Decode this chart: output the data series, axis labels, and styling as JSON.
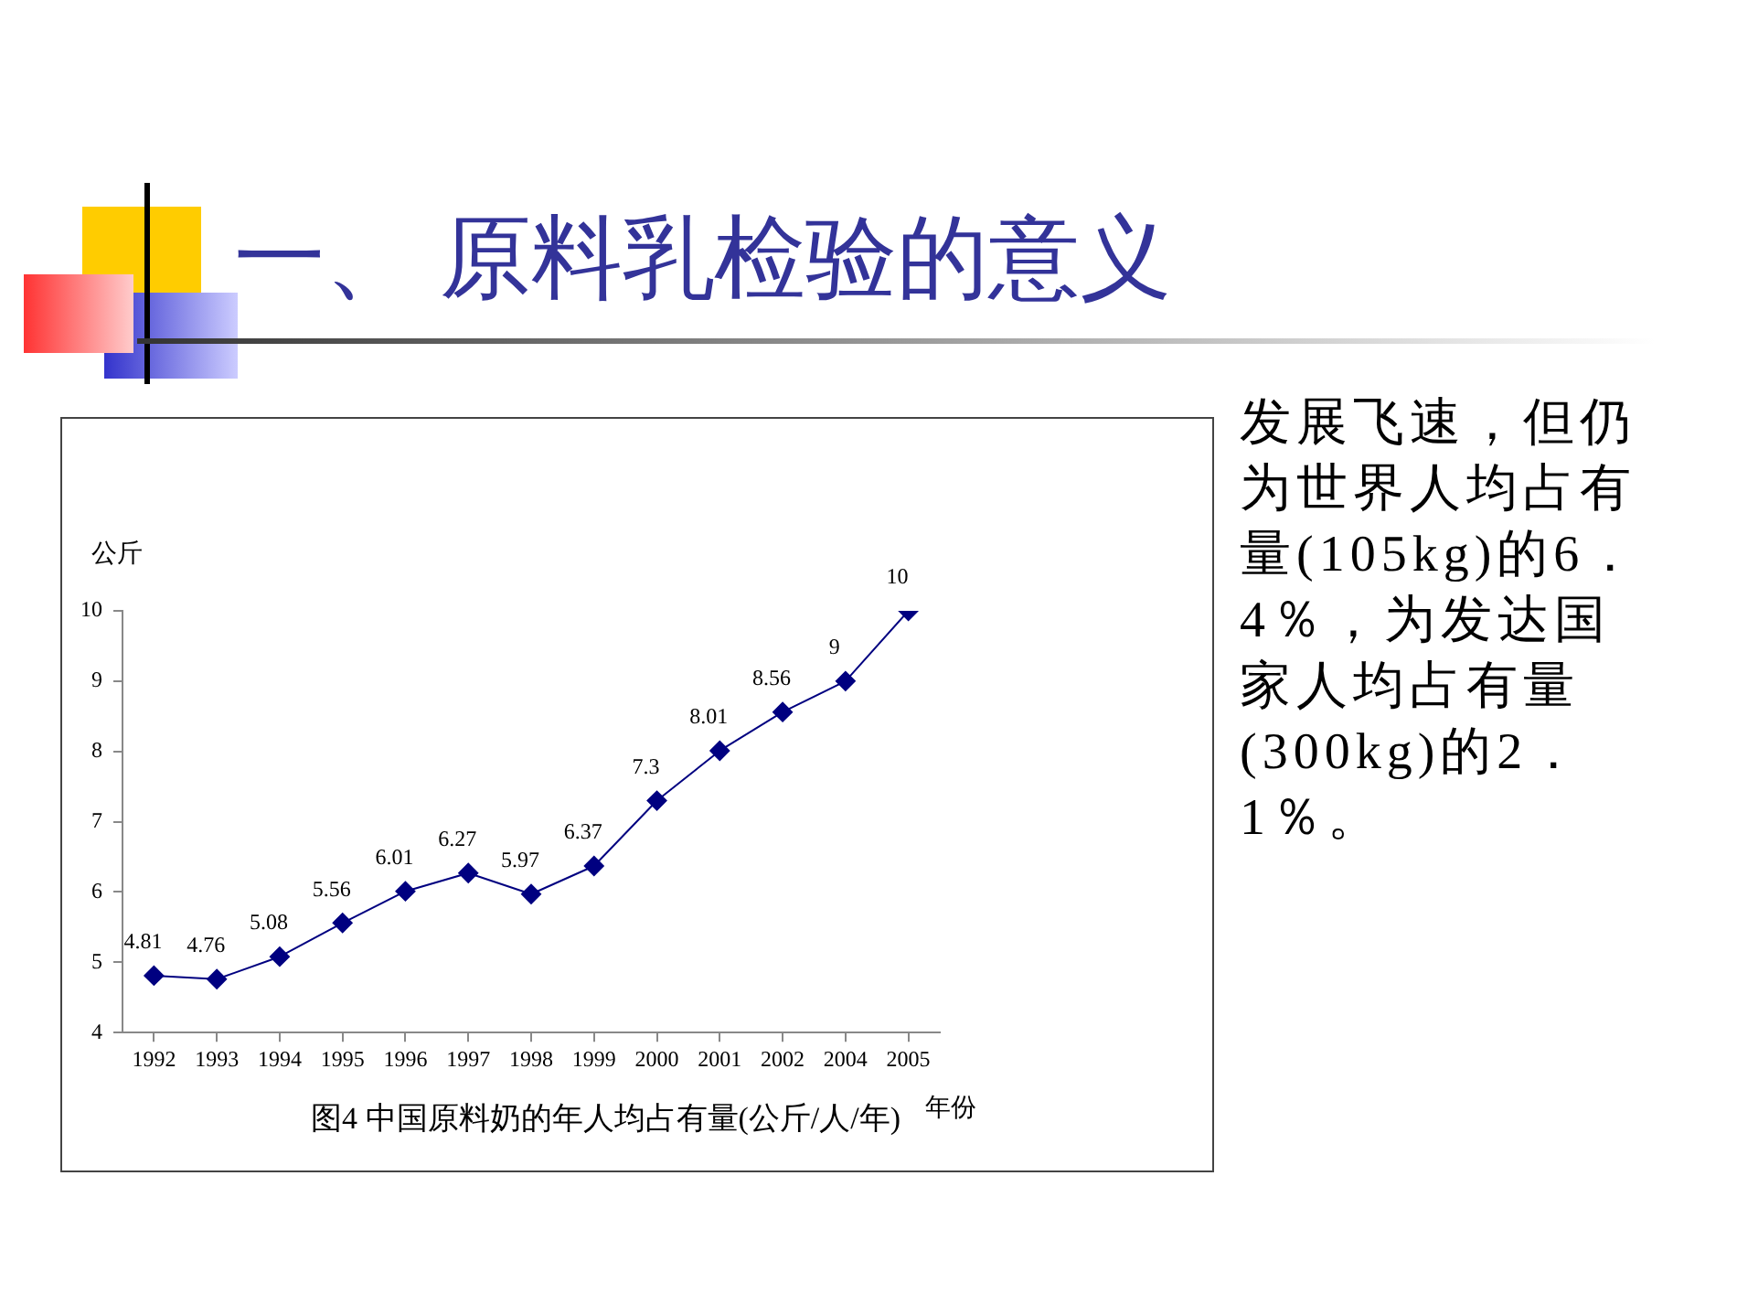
{
  "chart_data": {
    "type": "line",
    "title": "一、 原料乳检验的意义",
    "ylabel": "公斤",
    "xlabel": "年份",
    "categories": [
      "1992",
      "1993",
      "1994",
      "1995",
      "1996",
      "1997",
      "1998",
      "1999",
      "2000",
      "2001",
      "2002",
      "2004",
      "2005"
    ],
    "series": [
      {
        "color": "#000080",
        "values": [
          4.81,
          4.76,
          5.08,
          5.56,
          6.01,
          6.27,
          5.97,
          6.37,
          7.3,
          8.01,
          8.56,
          9,
          10
        ]
      }
    ],
    "ylim": [
      4,
      10
    ],
    "yticks": [
      4,
      5,
      6,
      7,
      8,
      9,
      10
    ],
    "grid": false,
    "legend": false,
    "marker": "diamond",
    "line_style": "solid",
    "data_labels": true,
    "annotations": [
      "图4 中国原料奶的年人均占有量(公斤/人/年)",
      "发展飞速，但仍为世界人均占有量(105kg)的6．4％，为发达国家人均占有量(300kg)的2．1％。"
    ]
  }
}
